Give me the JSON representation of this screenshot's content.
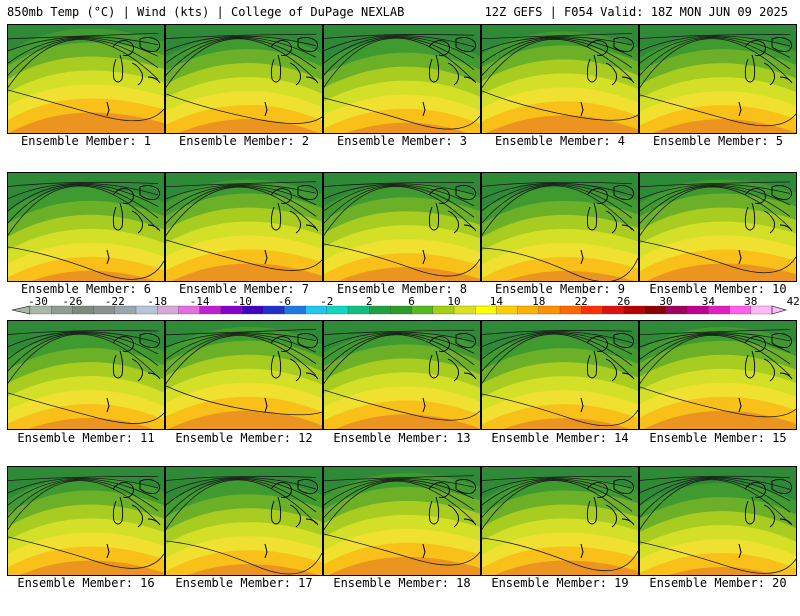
{
  "header": {
    "title": "850mb Temp (°C) | Wind (kts) | College of DuPage NEXLAB",
    "run_info": "12Z GEFS | F054 Valid: 18Z MON JUN 09 2025"
  },
  "members": [
    {
      "label": "Ensemble Member: 1"
    },
    {
      "label": "Ensemble Member: 2"
    },
    {
      "label": "Ensemble Member: 3"
    },
    {
      "label": "Ensemble Member: 4"
    },
    {
      "label": "Ensemble Member: 5"
    },
    {
      "label": "Ensemble Member: 6"
    },
    {
      "label": "Ensemble Member: 7"
    },
    {
      "label": "Ensemble Member: 8"
    },
    {
      "label": "Ensemble Member: 9"
    },
    {
      "label": "Ensemble Member: 10"
    },
    {
      "label": "Ensemble Member: 11"
    },
    {
      "label": "Ensemble Member: 12"
    },
    {
      "label": "Ensemble Member: 13"
    },
    {
      "label": "Ensemble Member: 14"
    },
    {
      "label": "Ensemble Member: 15"
    },
    {
      "label": "Ensemble Member: 16"
    },
    {
      "label": "Ensemble Member: 17"
    },
    {
      "label": "Ensemble Member: 18"
    },
    {
      "label": "Ensemble Member: 19"
    },
    {
      "label": "Ensemble Member: 20"
    }
  ],
  "colorbar": {
    "labels": [
      "-30",
      "-26",
      "-22",
      "-18",
      "-14",
      "-10",
      "-6",
      "-2",
      "2",
      "6",
      "10",
      "14",
      "18",
      "22",
      "26",
      "30",
      "34",
      "38",
      "42"
    ],
    "colors": [
      "#a8b8a8",
      "#909c90",
      "#7c8a7c",
      "#8a9090",
      "#9aa6ae",
      "#b6c6d6",
      "#d7a8d7",
      "#e070e0",
      "#c020d0",
      "#8800cc",
      "#4000c0",
      "#2030c8",
      "#1e78e6",
      "#20c8f0",
      "#10d8c0",
      "#10c080",
      "#20a040",
      "#2c9c28",
      "#58b820",
      "#a0d010",
      "#d8e020",
      "#ffff00",
      "#ffd000",
      "#ffb000",
      "#ff9000",
      "#ff6800",
      "#ff3000",
      "#e01010",
      "#b80000",
      "#8c0000",
      "#a00060",
      "#c00090",
      "#e020c0",
      "#ff60e8",
      "#ffb8f8"
    ]
  }
}
